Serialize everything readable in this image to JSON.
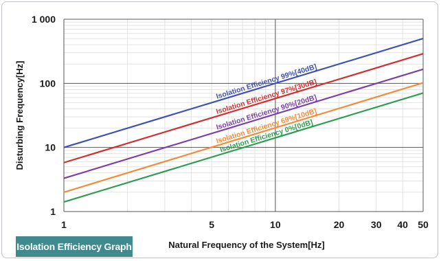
{
  "badge": {
    "label": "Isolation Efficiency Graph"
  },
  "chart_data": {
    "type": "line",
    "title": "",
    "xlabel": "Natural Frequency of the System[Hz]",
    "ylabel": "Disturbing Frequency[Hz]",
    "xscale": "log",
    "yscale": "log",
    "xlim": [
      1,
      50
    ],
    "ylim": [
      1,
      1000
    ],
    "grid": true,
    "x_ticks": [
      {
        "value": 1,
        "label": "1"
      },
      {
        "value": 5,
        "label": "5"
      },
      {
        "value": 10,
        "label": "10"
      },
      {
        "value": 20,
        "label": "20"
      },
      {
        "value": 30,
        "label": "30"
      },
      {
        "value": 40,
        "label": "40"
      },
      {
        "value": 50,
        "label": "50"
      }
    ],
    "y_ticks": [
      {
        "value": 1,
        "label": "1"
      },
      {
        "value": 10,
        "label": "10"
      },
      {
        "value": 100,
        "label": "100"
      },
      {
        "value": 1000,
        "label": "1 000"
      }
    ],
    "series": [
      {
        "name": "Isolation Efficiency 99%[40dB]",
        "color": "#3f51b5",
        "x": [
          1,
          50
        ],
        "y": [
          10,
          500
        ]
      },
      {
        "name": "Isolation Efficiency 97%[30dB]",
        "color": "#d32f2f",
        "x": [
          1,
          50
        ],
        "y": [
          5.8,
          290
        ]
      },
      {
        "name": "Isolation Efficiency 90%[20dB]",
        "color": "#7b3fa8",
        "x": [
          1,
          50
        ],
        "y": [
          3.3,
          166
        ]
      },
      {
        "name": "Isolation Efficiency 69%[10dB]",
        "color": "#f28c3a",
        "x": [
          1,
          50
        ],
        "y": [
          2.0,
          102
        ]
      },
      {
        "name": "Isolation Efficiency 0%[0dB]",
        "color": "#2e9e4f",
        "x": [
          1,
          50
        ],
        "y": [
          1.41,
          70.7
        ]
      }
    ]
  }
}
